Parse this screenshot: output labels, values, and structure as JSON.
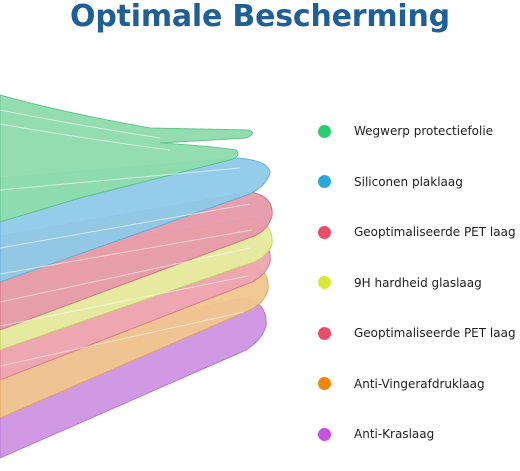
{
  "title": "Optimale Bescherming",
  "layers": [
    {
      "label": "Wegwerp protectiefolie",
      "color": "#2ecc71",
      "fill": "#8fdcad"
    },
    {
      "label": "Siliconen plaklaag",
      "color": "#2aa7dc",
      "fill": "#8fcbe9"
    },
    {
      "label": "Geoptimaliseerde PET laag",
      "color": "#e84e6a",
      "fill": "#e79aa9"
    },
    {
      "label": "9H hardheid glaslaag",
      "color": "#dbe63a",
      "fill": "#e6eea0"
    },
    {
      "label": "Geoptimaliseerde PET laag",
      "color": "#e84e6a",
      "fill": "#eea5b2"
    },
    {
      "label": "Anti-Vingerafdruklaag",
      "color": "#f0880f",
      "fill": "#f1c78e"
    },
    {
      "label": "Anti-Kraslaag",
      "color": "#c552e0",
      "fill": "#cf93e3"
    }
  ]
}
